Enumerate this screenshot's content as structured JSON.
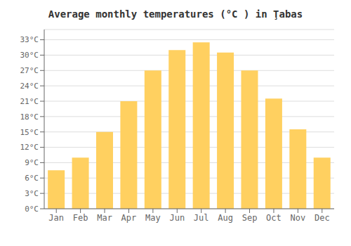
{
  "chart_data": {
    "type": "bar",
    "title": "Average monthly temperatures (°C ) in Ţabas",
    "categories": [
      "Jan",
      "Feb",
      "Mar",
      "Apr",
      "May",
      "Jun",
      "Jul",
      "Aug",
      "Sep",
      "Oct",
      "Nov",
      "Dec"
    ],
    "values": [
      7.5,
      10.0,
      15.0,
      21.0,
      27.0,
      31.0,
      32.5,
      30.5,
      27.0,
      21.5,
      15.5,
      10.0
    ],
    "color": "#FFD060",
    "ylim": [
      0,
      35
    ],
    "yticks": [
      {
        "value": 0,
        "label": "0°C"
      },
      {
        "value": 3,
        "label": "3°C"
      },
      {
        "value": 6,
        "label": "6°C"
      },
      {
        "value": 9,
        "label": "9°C"
      },
      {
        "value": 12,
        "label": "12°C"
      },
      {
        "value": 15,
        "label": "15°C"
      },
      {
        "value": 18,
        "label": "18°C"
      },
      {
        "value": 21,
        "label": "21°C"
      },
      {
        "value": 24,
        "label": "24°C"
      },
      {
        "value": 27,
        "label": "27°C"
      },
      {
        "value": 30,
        "label": "30°C"
      },
      {
        "value": 33,
        "label": "33°C"
      }
    ],
    "grid": true
  }
}
